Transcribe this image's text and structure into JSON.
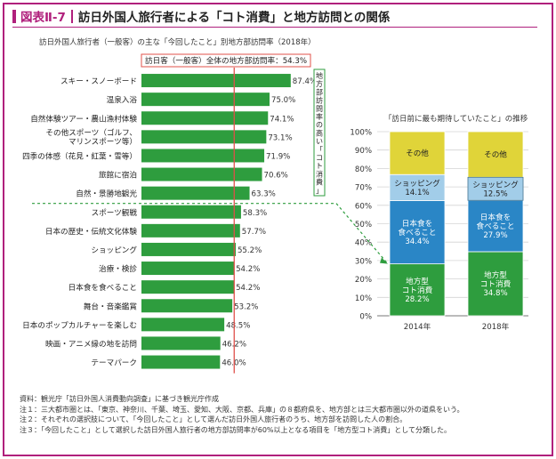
{
  "header": {
    "figure_number": "図表Ⅱ-7",
    "title": "訪日外国人旅行者による「コト消費」と地方訪問との関係"
  },
  "left_chart_subtitle": "訪日外国人旅行者（一般客）の主な「今回したこと」別地方部訪問率（2018年）",
  "right_chart_subtitle": "「訪日前に最も期待していたこと」の推移",
  "reference_line_label": "訪日客（一般客）全体の地方部訪問率：54.3%",
  "vertical_note": "地方部訪問率の高い「コト消費」",
  "notes": [
    "資料：観光庁「訪日外国人消費動向調査」に基づき観光庁作成",
    "注１：三大都市圏とは、「東京、神奈川、千葉、埼玉、愛知、大阪、京都、兵庫」の８都府県を、地方部とは三大都市圏以外の道県をいう。",
    "注２：それぞれの選択肢について、「今回したこと」として選んだ訪日外国人旅行者のうち、地方部を訪問した人の割合。",
    "注３：「今回したこと」として選択した訪日外国人旅行者の地方部訪問率が60%以上となる項目を「地方型コト消費」として分類した。"
  ],
  "colors": {
    "accent": "#b0207c",
    "bar": "#2e9d3e",
    "reference_line": "#e0504a",
    "divider": "#2e9d3e",
    "seg_other": "#e0d439",
    "seg_shopping": "#a2cde9",
    "seg_japanese_food": "#2a86c6",
    "seg_local_koto": "#2e9d3e"
  },
  "chart_data": [
    {
      "type": "bar",
      "orientation": "horizontal",
      "title": "訪日外国人旅行者（一般客）の主な「今回したこと」別地方部訪問率（2018年）",
      "categories": [
        "スキー・スノーボード",
        "温泉入浴",
        "自然体験ツアー・農山漁村体験",
        "その他スポーツ（ゴルフ、マリンスポーツ等）",
        "四季の体感（花見・紅葉・雪等）",
        "旅館に宿泊",
        "自然・景勝地観光",
        "スポーツ観戦",
        "日本の歴史・伝統文化体験",
        "ショッピング",
        "治療・検診",
        "日本食を食べること",
        "舞台・音楽鑑賞",
        "日本のポップカルチャーを楽しむ",
        "映画・アニメ縁の地を訪問",
        "テーマパーク"
      ],
      "display_labels": [
        [
          "スキー・スノーボード"
        ],
        [
          "温泉入浴"
        ],
        [
          "自然体験ツアー・農山漁村体験"
        ],
        [
          "その他スポーツ（ゴルフ、",
          "マリンスポーツ等）"
        ],
        [
          "四季の体感（花見・紅葉・雪等）"
        ],
        [
          "旅館に宿泊"
        ],
        [
          "自然・景勝地観光"
        ],
        [
          "スポーツ観戦"
        ],
        [
          "日本の歴史・伝統文化体験"
        ],
        [
          "ショッピング"
        ],
        [
          "治療・検診"
        ],
        [
          "日本食を食べること"
        ],
        [
          "舞台・音楽鑑賞"
        ],
        [
          "日本のポップカルチャーを楽しむ"
        ],
        [
          "映画・アニメ縁の地を訪問"
        ],
        [
          "テーマパーク"
        ]
      ],
      "values": [
        87.4,
        75.0,
        74.1,
        73.1,
        71.9,
        70.6,
        63.3,
        58.3,
        57.7,
        55.2,
        54.2,
        54.2,
        53.2,
        48.5,
        46.2,
        46.0
      ],
      "value_labels": [
        "87.4%",
        "75.0%",
        "74.1%",
        "73.1%",
        "71.9%",
        "70.6%",
        "63.3%",
        "58.3%",
        "57.7%",
        "55.2%",
        "54.2%",
        "54.2%",
        "53.2%",
        "48.5%",
        "46.2%",
        "46.0%"
      ],
      "xlim": [
        0,
        100
      ],
      "reference_value": 54.3,
      "threshold": 60,
      "unit": "%"
    },
    {
      "type": "bar",
      "stacked": true,
      "title": "「訪日前に最も期待していたこと」の推移",
      "categories": [
        "2014年",
        "2018年"
      ],
      "ylim": [
        0,
        100
      ],
      "yticks": [
        "0%",
        "10%",
        "20%",
        "30%",
        "40%",
        "50%",
        "60%",
        "70%",
        "80%",
        "90%",
        "100%"
      ],
      "series": [
        {
          "name": "地方型コト消費",
          "label_lines": [
            "地方型",
            "コト消費"
          ],
          "values": [
            28.2,
            34.8
          ],
          "value_labels": [
            "28.2%",
            "34.8%"
          ],
          "color": "#2e9d3e"
        },
        {
          "name": "日本食を食べること",
          "label_lines": [
            "日本食を",
            "食べること"
          ],
          "values": [
            34.4,
            27.9
          ],
          "value_labels": [
            "34.4%",
            "27.9%"
          ],
          "color": "#2a86c6"
        },
        {
          "name": "ショッピング",
          "label_lines": [
            "ショッピング"
          ],
          "values": [
            14.1,
            12.5
          ],
          "value_labels": [
            "14.1%",
            "12.5%"
          ],
          "color": "#a2cde9"
        },
        {
          "name": "その他",
          "label_lines": [
            "その他"
          ],
          "values": [
            23.3,
            24.8
          ],
          "value_labels": [
            "",
            ""
          ],
          "color": "#e0d439"
        }
      ]
    }
  ]
}
